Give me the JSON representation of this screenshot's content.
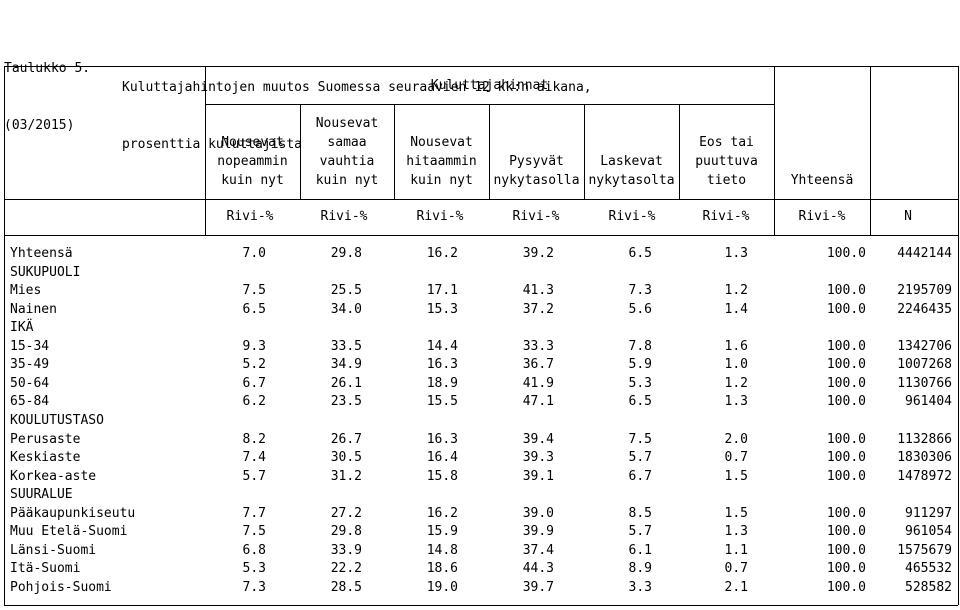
{
  "title": {
    "label": "Taulukko 5.",
    "line1": "Kuluttajahintojen muutos Suomessa seuraavien 12 kk:n aikana,",
    "period": "(03/2015)",
    "line2": "prosenttia kuluttajista"
  },
  "group_header": "Kuluttajahinnat",
  "columns": [
    {
      "lines": [
        "",
        "Nousevat",
        "nopeammin",
        "kuin nyt"
      ],
      "unit": "Rivi-%"
    },
    {
      "lines": [
        "Nousevat",
        "samaa",
        "vauhtia",
        "kuin nyt"
      ],
      "unit": "Rivi-%"
    },
    {
      "lines": [
        "",
        "Nousevat",
        "hitaammin",
        "kuin nyt"
      ],
      "unit": "Rivi-%"
    },
    {
      "lines": [
        "",
        "",
        "Pysyvät",
        "nykytasolla"
      ],
      "unit": "Rivi-%"
    },
    {
      "lines": [
        "",
        "",
        "Laskevat",
        "nykytasolta"
      ],
      "unit": "Rivi-%"
    },
    {
      "lines": [
        "",
        "Eos tai",
        "puuttuva",
        "tieto"
      ],
      "unit": "Rivi-%"
    },
    {
      "lines": [
        "",
        "",
        "",
        "Yhteensä"
      ],
      "unit": "Rivi-%"
    },
    {
      "lines": [
        "",
        "",
        "",
        ""
      ],
      "unit": "N"
    }
  ],
  "rows": [
    {
      "label": "Yhteensä",
      "values": [
        "7.0",
        "29.8",
        "16.2",
        "39.2",
        "6.5",
        "1.3",
        "100.0",
        "4442144"
      ]
    },
    {
      "label": "SUKUPUOLI",
      "values": []
    },
    {
      "label": "Mies",
      "values": [
        "7.5",
        "25.5",
        "17.1",
        "41.3",
        "7.3",
        "1.2",
        "100.0",
        "2195709"
      ]
    },
    {
      "label": "Nainen",
      "values": [
        "6.5",
        "34.0",
        "15.3",
        "37.2",
        "5.6",
        "1.4",
        "100.0",
        "2246435"
      ]
    },
    {
      "label": "IKÄ",
      "values": []
    },
    {
      "label": "15-34",
      "values": [
        "9.3",
        "33.5",
        "14.4",
        "33.3",
        "7.8",
        "1.6",
        "100.0",
        "1342706"
      ]
    },
    {
      "label": "35-49",
      "values": [
        "5.2",
        "34.9",
        "16.3",
        "36.7",
        "5.9",
        "1.0",
        "100.0",
        "1007268"
      ]
    },
    {
      "label": "50-64",
      "values": [
        "6.7",
        "26.1",
        "18.9",
        "41.9",
        "5.3",
        "1.2",
        "100.0",
        "1130766"
      ]
    },
    {
      "label": "65-84",
      "values": [
        "6.2",
        "23.5",
        "15.5",
        "47.1",
        "6.5",
        "1.3",
        "100.0",
        "961404"
      ]
    },
    {
      "label": "KOULUTUSTASO",
      "values": []
    },
    {
      "label": "Perusaste",
      "values": [
        "8.2",
        "26.7",
        "16.3",
        "39.4",
        "7.5",
        "2.0",
        "100.0",
        "1132866"
      ]
    },
    {
      "label": "Keskiaste",
      "values": [
        "7.4",
        "30.5",
        "16.4",
        "39.3",
        "5.7",
        "0.7",
        "100.0",
        "1830306"
      ]
    },
    {
      "label": "Korkea-aste",
      "values": [
        "5.7",
        "31.2",
        "15.8",
        "39.1",
        "6.7",
        "1.5",
        "100.0",
        "1478972"
      ]
    },
    {
      "label": "SUURALUE",
      "values": []
    },
    {
      "label": "Pääkaupunkiseutu",
      "values": [
        "7.7",
        "27.2",
        "16.2",
        "39.0",
        "8.5",
        "1.5",
        "100.0",
        "911297"
      ]
    },
    {
      "label": "Muu Etelä-Suomi",
      "values": [
        "7.5",
        "29.8",
        "15.9",
        "39.9",
        "5.7",
        "1.3",
        "100.0",
        "961054"
      ]
    },
    {
      "label": "Länsi-Suomi",
      "values": [
        "6.8",
        "33.9",
        "14.8",
        "37.4",
        "6.1",
        "1.1",
        "100.0",
        "1575679"
      ]
    },
    {
      "label": "Itä-Suomi",
      "values": [
        "5.3",
        "22.2",
        "18.6",
        "44.3",
        "8.9",
        "0.7",
        "100.0",
        "465532"
      ]
    },
    {
      "label": "Pohjois-Suomi",
      "values": [
        "7.3",
        "28.5",
        "19.0",
        "39.7",
        "3.3",
        "2.1",
        "100.0",
        "528582"
      ]
    }
  ]
}
